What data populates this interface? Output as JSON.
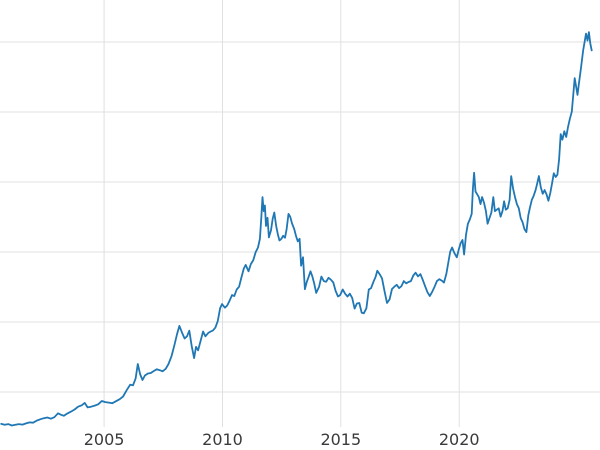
{
  "chart_data": {
    "type": "line",
    "title": "",
    "subtitle": "",
    "xlabel": "",
    "ylabel": "",
    "legend": "none",
    "grid": true,
    "background_color": "#ffffff",
    "line_color": "#1f77b4",
    "line_width": 1.8,
    "grid_color": "#e0e0e0",
    "tick_label_color": "#3a3a3a",
    "x_range": [
      2000.6,
      2025.95
    ],
    "y_range": [
      250,
      3300
    ],
    "x_ticks": [
      {
        "label": "2005",
        "value": 2005
      },
      {
        "label": "2010",
        "value": 2010
      },
      {
        "label": "2015",
        "value": 2015
      },
      {
        "label": "2020",
        "value": 2020
      }
    ],
    "y_gridlines": [
      500,
      1000,
      1500,
      2000,
      2500,
      3000
    ],
    "y_tick_labels_visible": false,
    "series": [
      {
        "name": "series1",
        "points": [
          [
            2000.65,
            272
          ],
          [
            2000.8,
            266
          ],
          [
            2000.95,
            271
          ],
          [
            2001.1,
            261
          ],
          [
            2001.25,
            266
          ],
          [
            2001.4,
            271
          ],
          [
            2001.55,
            267
          ],
          [
            2001.7,
            276
          ],
          [
            2001.85,
            283
          ],
          [
            2002.0,
            281
          ],
          [
            2002.15,
            296
          ],
          [
            2002.3,
            305
          ],
          [
            2002.45,
            313
          ],
          [
            2002.6,
            318
          ],
          [
            2002.75,
            309
          ],
          [
            2002.9,
            320
          ],
          [
            2003.05,
            348
          ],
          [
            2003.18,
            337
          ],
          [
            2003.3,
            330
          ],
          [
            2003.45,
            347
          ],
          [
            2003.6,
            360
          ],
          [
            2003.75,
            375
          ],
          [
            2003.9,
            395
          ],
          [
            2004.05,
            405
          ],
          [
            2004.18,
            422
          ],
          [
            2004.3,
            390
          ],
          [
            2004.45,
            395
          ],
          [
            2004.6,
            403
          ],
          [
            2004.75,
            412
          ],
          [
            2004.9,
            436
          ],
          [
            2005.05,
            428
          ],
          [
            2005.2,
            424
          ],
          [
            2005.35,
            420
          ],
          [
            2005.5,
            434
          ],
          [
            2005.65,
            448
          ],
          [
            2005.8,
            468
          ],
          [
            2005.95,
            512
          ],
          [
            2006.1,
            552
          ],
          [
            2006.22,
            548
          ],
          [
            2006.33,
            596
          ],
          [
            2006.42,
            700
          ],
          [
            2006.52,
            628
          ],
          [
            2006.62,
            586
          ],
          [
            2006.72,
            618
          ],
          [
            2006.85,
            632
          ],
          [
            2006.97,
            636
          ],
          [
            2007.1,
            650
          ],
          [
            2007.22,
            662
          ],
          [
            2007.35,
            656
          ],
          [
            2007.47,
            648
          ],
          [
            2007.6,
            666
          ],
          [
            2007.72,
            700
          ],
          [
            2007.85,
            758
          ],
          [
            2007.97,
            834
          ],
          [
            2008.08,
            912
          ],
          [
            2008.18,
            972
          ],
          [
            2008.28,
            928
          ],
          [
            2008.4,
            882
          ],
          [
            2008.5,
            898
          ],
          [
            2008.6,
            938
          ],
          [
            2008.7,
            828
          ],
          [
            2008.8,
            742
          ],
          [
            2008.88,
            822
          ],
          [
            2008.97,
            798
          ],
          [
            2009.08,
            868
          ],
          [
            2009.18,
            932
          ],
          [
            2009.28,
            898
          ],
          [
            2009.4,
            922
          ],
          [
            2009.5,
            932
          ],
          [
            2009.6,
            940
          ],
          [
            2009.7,
            960
          ],
          [
            2009.8,
            1008
          ],
          [
            2009.9,
            1098
          ],
          [
            2009.98,
            1128
          ],
          [
            2010.1,
            1102
          ],
          [
            2010.2,
            1118
          ],
          [
            2010.3,
            1152
          ],
          [
            2010.4,
            1192
          ],
          [
            2010.5,
            1186
          ],
          [
            2010.6,
            1232
          ],
          [
            2010.7,
            1252
          ],
          [
            2010.8,
            1318
          ],
          [
            2010.9,
            1382
          ],
          [
            2010.98,
            1408
          ],
          [
            2011.1,
            1362
          ],
          [
            2011.2,
            1414
          ],
          [
            2011.3,
            1442
          ],
          [
            2011.4,
            1498
          ],
          [
            2011.5,
            1532
          ],
          [
            2011.58,
            1594
          ],
          [
            2011.64,
            1744
          ],
          [
            2011.69,
            1892
          ],
          [
            2011.74,
            1792
          ],
          [
            2011.79,
            1832
          ],
          [
            2011.84,
            1686
          ],
          [
            2011.9,
            1744
          ],
          [
            2011.96,
            1604
          ],
          [
            2012.05,
            1656
          ],
          [
            2012.12,
            1738
          ],
          [
            2012.19,
            1782
          ],
          [
            2012.27,
            1684
          ],
          [
            2012.34,
            1624
          ],
          [
            2012.41,
            1582
          ],
          [
            2012.49,
            1594
          ],
          [
            2012.56,
            1616
          ],
          [
            2012.64,
            1602
          ],
          [
            2012.71,
            1662
          ],
          [
            2012.79,
            1772
          ],
          [
            2012.86,
            1752
          ],
          [
            2012.94,
            1702
          ],
          [
            2013.03,
            1664
          ],
          [
            2013.11,
            1612
          ],
          [
            2013.18,
            1576
          ],
          [
            2013.26,
            1594
          ],
          [
            2013.32,
            1402
          ],
          [
            2013.4,
            1462
          ],
          [
            2013.48,
            1234
          ],
          [
            2013.56,
            1284
          ],
          [
            2013.64,
            1322
          ],
          [
            2013.72,
            1362
          ],
          [
            2013.8,
            1324
          ],
          [
            2013.88,
            1272
          ],
          [
            2013.96,
            1208
          ],
          [
            2014.08,
            1252
          ],
          [
            2014.18,
            1324
          ],
          [
            2014.28,
            1292
          ],
          [
            2014.38,
            1288
          ],
          [
            2014.48,
            1316
          ],
          [
            2014.58,
            1302
          ],
          [
            2014.68,
            1282
          ],
          [
            2014.78,
            1222
          ],
          [
            2014.88,
            1182
          ],
          [
            2014.97,
            1192
          ],
          [
            2015.08,
            1232
          ],
          [
            2015.18,
            1202
          ],
          [
            2015.28,
            1182
          ],
          [
            2015.38,
            1202
          ],
          [
            2015.48,
            1172
          ],
          [
            2015.58,
            1096
          ],
          [
            2015.68,
            1132
          ],
          [
            2015.78,
            1136
          ],
          [
            2015.88,
            1066
          ],
          [
            2015.97,
            1062
          ],
          [
            2016.08,
            1098
          ],
          [
            2016.18,
            1232
          ],
          [
            2016.28,
            1242
          ],
          [
            2016.38,
            1288
          ],
          [
            2016.47,
            1322
          ],
          [
            2016.54,
            1366
          ],
          [
            2016.64,
            1342
          ],
          [
            2016.74,
            1312
          ],
          [
            2016.84,
            1224
          ],
          [
            2016.95,
            1136
          ],
          [
            2017.06,
            1162
          ],
          [
            2017.16,
            1236
          ],
          [
            2017.26,
            1252
          ],
          [
            2017.36,
            1266
          ],
          [
            2017.46,
            1242
          ],
          [
            2017.56,
            1256
          ],
          [
            2017.66,
            1292
          ],
          [
            2017.76,
            1276
          ],
          [
            2017.86,
            1286
          ],
          [
            2017.96,
            1292
          ],
          [
            2018.06,
            1332
          ],
          [
            2018.16,
            1352
          ],
          [
            2018.26,
            1326
          ],
          [
            2018.36,
            1342
          ],
          [
            2018.46,
            1302
          ],
          [
            2018.56,
            1256
          ],
          [
            2018.66,
            1212
          ],
          [
            2018.76,
            1186
          ],
          [
            2018.86,
            1216
          ],
          [
            2018.96,
            1252
          ],
          [
            2019.06,
            1292
          ],
          [
            2019.16,
            1306
          ],
          [
            2019.26,
            1296
          ],
          [
            2019.36,
            1282
          ],
          [
            2019.46,
            1346
          ],
          [
            2019.54,
            1424
          ],
          [
            2019.62,
            1502
          ],
          [
            2019.7,
            1532
          ],
          [
            2019.8,
            1492
          ],
          [
            2019.9,
            1462
          ],
          [
            2019.98,
            1516
          ],
          [
            2020.06,
            1562
          ],
          [
            2020.14,
            1586
          ],
          [
            2020.21,
            1482
          ],
          [
            2020.29,
            1622
          ],
          [
            2020.37,
            1702
          ],
          [
            2020.45,
            1732
          ],
          [
            2020.53,
            1772
          ],
          [
            2020.58,
            1952
          ],
          [
            2020.63,
            2066
          ],
          [
            2020.69,
            1932
          ],
          [
            2020.76,
            1912
          ],
          [
            2020.83,
            1892
          ],
          [
            2020.9,
            1842
          ],
          [
            2020.97,
            1892
          ],
          [
            2021.05,
            1852
          ],
          [
            2021.13,
            1792
          ],
          [
            2021.2,
            1702
          ],
          [
            2021.28,
            1742
          ],
          [
            2021.36,
            1782
          ],
          [
            2021.44,
            1892
          ],
          [
            2021.51,
            1792
          ],
          [
            2021.59,
            1802
          ],
          [
            2021.67,
            1812
          ],
          [
            2021.75,
            1752
          ],
          [
            2021.83,
            1792
          ],
          [
            2021.9,
            1862
          ],
          [
            2021.97,
            1802
          ],
          [
            2022.05,
            1812
          ],
          [
            2022.13,
            1872
          ],
          [
            2022.2,
            2042
          ],
          [
            2022.28,
            1952
          ],
          [
            2022.36,
            1892
          ],
          [
            2022.44,
            1842
          ],
          [
            2022.52,
            1812
          ],
          [
            2022.6,
            1742
          ],
          [
            2022.68,
            1712
          ],
          [
            2022.76,
            1662
          ],
          [
            2022.84,
            1642
          ],
          [
            2022.92,
            1762
          ],
          [
            2022.99,
            1816
          ],
          [
            2023.07,
            1872
          ],
          [
            2023.15,
            1902
          ],
          [
            2023.23,
            1942
          ],
          [
            2023.3,
            1992
          ],
          [
            2023.37,
            2042
          ],
          [
            2023.45,
            1962
          ],
          [
            2023.53,
            1916
          ],
          [
            2023.61,
            1942
          ],
          [
            2023.69,
            1912
          ],
          [
            2023.77,
            1866
          ],
          [
            2023.85,
            1922
          ],
          [
            2023.93,
            1996
          ],
          [
            2024.0,
            2062
          ],
          [
            2024.08,
            2036
          ],
          [
            2024.15,
            2052
          ],
          [
            2024.22,
            2162
          ],
          [
            2024.29,
            2342
          ],
          [
            2024.36,
            2302
          ],
          [
            2024.44,
            2362
          ],
          [
            2024.52,
            2322
          ],
          [
            2024.6,
            2392
          ],
          [
            2024.68,
            2452
          ],
          [
            2024.76,
            2502
          ],
          [
            2024.83,
            2642
          ],
          [
            2024.88,
            2742
          ],
          [
            2024.94,
            2682
          ],
          [
            2025.0,
            2622
          ],
          [
            2025.06,
            2702
          ],
          [
            2025.12,
            2782
          ],
          [
            2025.18,
            2862
          ],
          [
            2025.24,
            2942
          ],
          [
            2025.3,
            3000
          ],
          [
            2025.36,
            3060
          ],
          [
            2025.42,
            3010
          ],
          [
            2025.48,
            3070
          ],
          [
            2025.54,
            2990
          ],
          [
            2025.6,
            2940
          ]
        ]
      }
    ]
  }
}
